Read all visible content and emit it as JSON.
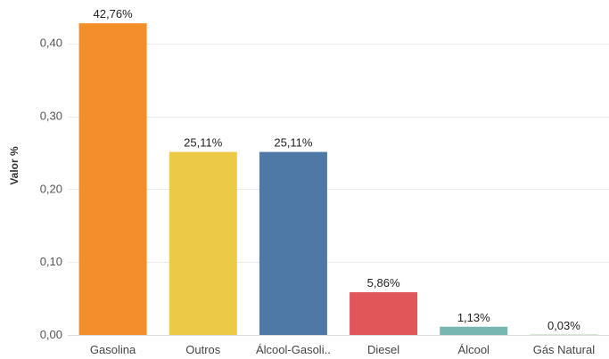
{
  "chart_data": {
    "type": "bar",
    "title": "",
    "xlabel": "",
    "ylabel": "Valor %",
    "ylim": [
      0,
      0.44
    ],
    "yticks": [
      0.0,
      0.1,
      0.2,
      0.3,
      0.4
    ],
    "ytick_labels": [
      "0,00",
      "0,10",
      "0,20",
      "0,30",
      "0,40"
    ],
    "grid": true,
    "categories": [
      "Gasolina",
      "Outros",
      "Álcool-Gasoli..",
      "Diesel",
      "Álcool",
      "Gás Natural"
    ],
    "values": [
      0.4276,
      0.2511,
      0.2511,
      0.0586,
      0.0113,
      0.0003
    ],
    "data_labels": [
      "42,76%",
      "25,11%",
      "25,11%",
      "5,86%",
      "1,13%",
      "0,03%"
    ],
    "colors": [
      "#F28E2B",
      "#EDC948",
      "#4E79A7",
      "#E15759",
      "#76B7B2",
      "#59A14F"
    ]
  }
}
